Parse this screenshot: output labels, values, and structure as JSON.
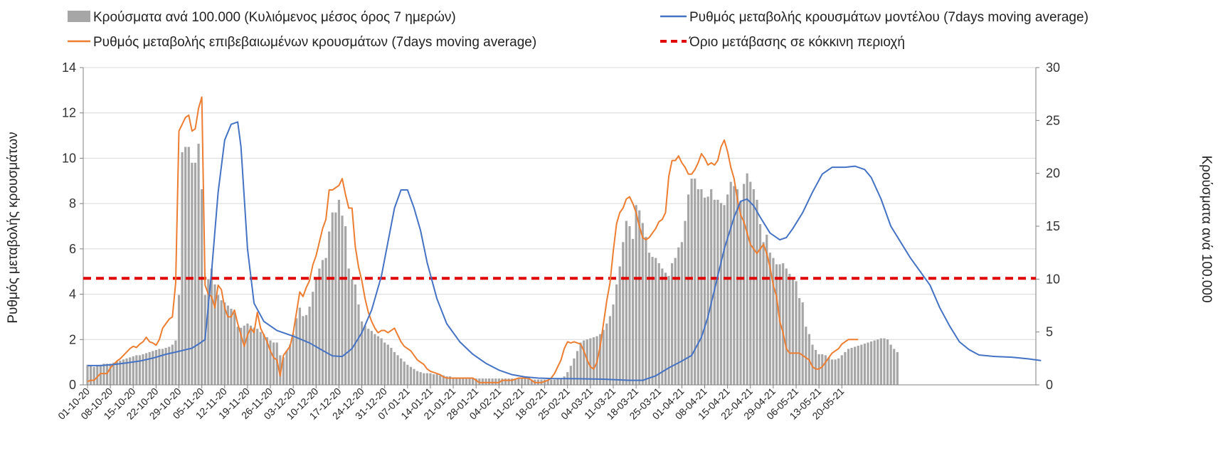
{
  "chart_data": {
    "type": "bar",
    "legend": {
      "bars_label": "Κρούσματα ανά 100.000 (Κυλιόμενος μέσος όρος 7 ημερών)",
      "model_label": "Ρυθμός μεταβολής κρουσμάτων μοντέλου (7days moving average)",
      "confirmed_label": "Ρυθμός μεταβολής επιβεβαιωμένων κρουσμάτων (7days moving average)",
      "threshold_label": "Όριο μετάβασης σε κόκκινη περιοχή"
    },
    "ylabel_left": "Ρυθμός μεταβολής κρουσμάτων",
    "ylabel_right": "Κρούσματα ανά 100.000",
    "ylim_left": [
      0,
      14
    ],
    "ylim_right": [
      0,
      30
    ],
    "yticks_left": [
      "0",
      "2",
      "4",
      "6",
      "8",
      "10",
      "12",
      "14"
    ],
    "yticks_right": [
      "0",
      "5",
      "10",
      "15",
      "20",
      "25",
      "30"
    ],
    "grid": true,
    "legend_position": "top",
    "x_labels": [
      "01-10-20",
      "08-10-20",
      "15-10-20",
      "22-10-20",
      "29-10-20",
      "05-11-20",
      "12-11-20",
      "19-11-20",
      "26-11-20",
      "03-12-20",
      "10-12-20",
      "17-12-20",
      "24-12-20",
      "31-12-20",
      "07-01-21",
      "14-01-21",
      "21-01-21",
      "28-01-21",
      "04-02-21",
      "11-02-21",
      "18-02-21",
      "25-02-21",
      "04-03-21",
      "11-03-21",
      "18-03-21",
      "25-03-21",
      "01-04-21",
      "08-04-21",
      "15-04-21",
      "22-04-21",
      "29-04-21",
      "06-05-21",
      "13-05-21",
      "20-05-21"
    ],
    "x_label_spacing_days": 7,
    "threshold_value": 4.7,
    "series": [
      {
        "name": "Κρούσματα ανά 100.000 (Κυλιόμενος μέσος όρος 7 ημερών)",
        "type": "bar",
        "axis": "right",
        "color": "#a6a6a6",
        "values": [
          1.9,
          1.8,
          1.7,
          1.8,
          1.9,
          2.0,
          2.0,
          2.0,
          2.1,
          2.2,
          2.3,
          2.4,
          2.5,
          2.6,
          2.7,
          2.8,
          2.8,
          2.9,
          3.0,
          3.1,
          3.2,
          3.3,
          3.4,
          3.4,
          3.5,
          3.6,
          3.8,
          4.2,
          8.5,
          22.0,
          22.5,
          22.5,
          21.0,
          21.0,
          22.8,
          18.5,
          8.5,
          10.0,
          11.0,
          9.5,
          8.5,
          8.0,
          7.8,
          7.5,
          7.2,
          6.8,
          5.5,
          5.4,
          5.6,
          5.8,
          5.6,
          5.4,
          5.3,
          5.0,
          4.8,
          4.5,
          4.2,
          4.0,
          4.0,
          2.8,
          2.6,
          3.2,
          3.8,
          4.8,
          6.3,
          7.3,
          6.5,
          6.6,
          7.4,
          8.8,
          10.0,
          11.0,
          11.8,
          12.0,
          14.5,
          16.3,
          16.3,
          17.5,
          16.0,
          15.0,
          11.0,
          10.0,
          9.5,
          7.6,
          6.0,
          5.6,
          5.3,
          5.1,
          4.8,
          4.6,
          4.4,
          4.0,
          3.8,
          3.5,
          3.1,
          2.8,
          2.5,
          2.2,
          1.9,
          1.7,
          1.5,
          1.3,
          1.2,
          1.1,
          1.1,
          1.1,
          1.0,
          1.0,
          0.9,
          0.9,
          0.8,
          0.8,
          0.7,
          0.6,
          0.6,
          0.6,
          0.6,
          0.6,
          0.6,
          0.6,
          0.6,
          0.6,
          0.6,
          0.6,
          0.6,
          0.6,
          0.6,
          0.6,
          0.6,
          0.6,
          0.6,
          0.6,
          0.6,
          0.6,
          0.6,
          0.6,
          0.5,
          0.5,
          0.5,
          0.5,
          0.5,
          0.5,
          0.5,
          0.5,
          0.6,
          0.6,
          0.8,
          1.2,
          1.8,
          2.5,
          3.2,
          4.0,
          4.2,
          4.3,
          4.4,
          4.5,
          4.6,
          4.8,
          5.2,
          5.8,
          6.5,
          7.6,
          9.5,
          11.2,
          13.5,
          15.5,
          15.0,
          13.8,
          17.0,
          16.5,
          15.3,
          14.0,
          12.5,
          12.1,
          12.0,
          11.5,
          11.0,
          10.6,
          10.3,
          11.5,
          12.0,
          13.0,
          13.5,
          15.5,
          18.0,
          19.5,
          19.5,
          18.5,
          18.5,
          17.7,
          17.8,
          18.5,
          17.5,
          17.5,
          17.2,
          17.0,
          18.0,
          19.2,
          18.8,
          18.5,
          17.4,
          19.0,
          20.0,
          19.2,
          18.5,
          17.5,
          15.2,
          13.5,
          14.2,
          12.5,
          12.0,
          11.4,
          11.4,
          11.5,
          11.0,
          10.5,
          10.2,
          9.8,
          8.2,
          7.8,
          5.5,
          4.8,
          3.8,
          3.3,
          2.9,
          2.9,
          2.8,
          2.6,
          2.4,
          2.4,
          2.5,
          2.8,
          3.1,
          3.4,
          3.5,
          3.6,
          3.7,
          3.8,
          3.9,
          4.0,
          4.1,
          4.2,
          4.3,
          4.4,
          4.4,
          4.3,
          3.8,
          3.4,
          3.1
        ]
      },
      {
        "name": "Ρυθμός μεταβολής κρουσμάτων μοντέλου (7days moving average)",
        "type": "line",
        "axis": "left",
        "color": "#4472c4",
        "points": [
          [
            0,
            0.85
          ],
          [
            4,
            0.85
          ],
          [
            8,
            0.9
          ],
          [
            12,
            0.97
          ],
          [
            16,
            1.05
          ],
          [
            20,
            1.18
          ],
          [
            24,
            1.35
          ],
          [
            28,
            1.48
          ],
          [
            32,
            1.62
          ],
          [
            34,
            1.8
          ],
          [
            36,
            2.0
          ],
          [
            38,
            5.0
          ],
          [
            40,
            8.5
          ],
          [
            42,
            10.8
          ],
          [
            44,
            11.5
          ],
          [
            46,
            11.6
          ],
          [
            47,
            10.5
          ],
          [
            49,
            6.0
          ],
          [
            51,
            3.6
          ],
          [
            54,
            2.8
          ],
          [
            58,
            2.4
          ],
          [
            63,
            2.15
          ],
          [
            68,
            1.85
          ],
          [
            72,
            1.52
          ],
          [
            75,
            1.28
          ],
          [
            78,
            1.25
          ],
          [
            81,
            1.6
          ],
          [
            84,
            2.3
          ],
          [
            87,
            3.3
          ],
          [
            90,
            4.8
          ],
          [
            92,
            6.3
          ],
          [
            94,
            7.8
          ],
          [
            96,
            8.6
          ],
          [
            98,
            8.6
          ],
          [
            100,
            7.8
          ],
          [
            102,
            6.8
          ],
          [
            104,
            5.4
          ],
          [
            107,
            3.8
          ],
          [
            110,
            2.7
          ],
          [
            114,
            1.9
          ],
          [
            118,
            1.35
          ],
          [
            122,
            0.95
          ],
          [
            126,
            0.65
          ],
          [
            130,
            0.45
          ],
          [
            134,
            0.35
          ],
          [
            138,
            0.3
          ],
          [
            142,
            0.28
          ],
          [
            150,
            0.27
          ],
          [
            158,
            0.25
          ],
          [
            166,
            0.2
          ],
          [
            170,
            0.2
          ],
          [
            174,
            0.4
          ],
          [
            178,
            0.75
          ],
          [
            182,
            1.05
          ],
          [
            185,
            1.3
          ],
          [
            188,
            2.1
          ],
          [
            190,
            3.0
          ],
          [
            192,
            4.2
          ],
          [
            195,
            6.0
          ],
          [
            198,
            7.4
          ],
          [
            200,
            8.1
          ],
          [
            202,
            8.2
          ],
          [
            204,
            7.9
          ],
          [
            206,
            7.4
          ],
          [
            209,
            6.7
          ],
          [
            212,
            6.4
          ],
          [
            214,
            6.5
          ],
          [
            216,
            6.9
          ],
          [
            219,
            7.6
          ],
          [
            222,
            8.5
          ],
          [
            225,
            9.3
          ],
          [
            228,
            9.6
          ],
          [
            232,
            9.6
          ],
          [
            235,
            9.65
          ],
          [
            238,
            9.5
          ],
          [
            240,
            9.15
          ],
          [
            243,
            8.2
          ],
          [
            246,
            7.0
          ],
          [
            249,
            6.3
          ],
          [
            252,
            5.6
          ],
          [
            255,
            5.0
          ],
          [
            258,
            4.4
          ],
          [
            261,
            3.4
          ],
          [
            264,
            2.6
          ],
          [
            267,
            1.9
          ],
          [
            270,
            1.55
          ],
          [
            273,
            1.32
          ],
          [
            278,
            1.25
          ],
          [
            283,
            1.22
          ],
          [
            288,
            1.15
          ],
          [
            292,
            1.07
          ]
        ]
      },
      {
        "name": "Ρυθμός μεταβολής επιβεβαιωμένων κρουσμάτων (7days moving average)",
        "type": "line",
        "axis": "left",
        "color": "#ed7d31",
        "values": [
          0.15,
          0.2,
          0.2,
          0.35,
          0.5,
          0.5,
          0.5,
          0.75,
          0.9,
          1.05,
          1.15,
          1.3,
          1.45,
          1.6,
          1.7,
          1.65,
          1.8,
          1.9,
          2.1,
          1.9,
          1.85,
          1.75,
          2.0,
          2.5,
          2.7,
          2.9,
          3.0,
          4.5,
          11.2,
          11.5,
          11.8,
          11.9,
          11.2,
          11.3,
          12.2,
          12.7,
          4.4,
          4.0,
          3.9,
          3.4,
          4.4,
          4.2,
          3.4,
          3.0,
          3.0,
          3.3,
          2.7,
          2.2,
          1.7,
          2.2,
          2.5,
          2.3,
          3.2,
          2.5,
          2.2,
          1.9,
          1.5,
          1.2,
          1.1,
          0.4,
          1.3,
          1.5,
          1.7,
          2.3,
          3.2,
          4.1,
          3.9,
          4.3,
          4.6,
          5.3,
          5.7,
          6.3,
          6.9,
          7.3,
          8.6,
          8.6,
          8.7,
          8.8,
          9.1,
          8.4,
          7.8,
          7.8,
          6.1,
          5.2,
          4.6,
          3.8,
          3.2,
          2.8,
          2.5,
          2.3,
          2.4,
          2.4,
          2.3,
          2.4,
          2.5,
          2.2,
          1.9,
          1.7,
          1.6,
          1.5,
          1.3,
          1.1,
          1.0,
          0.9,
          0.7,
          0.6,
          0.55,
          0.5,
          0.45,
          0.35,
          0.3,
          0.3,
          0.3,
          0.3,
          0.3,
          0.3,
          0.3,
          0.3,
          0.3,
          0.2,
          0.1,
          0.1,
          0.1,
          0.1,
          0.1,
          0.1,
          0.1,
          0.2,
          0.2,
          0.2,
          0.2,
          0.25,
          0.3,
          0.3,
          0.3,
          0.3,
          0.2,
          0.1,
          0.1,
          0.1,
          0.15,
          0.2,
          0.3,
          0.5,
          0.8,
          1.1,
          1.6,
          1.9,
          1.85,
          1.9,
          1.85,
          1.8,
          1.5,
          1.1,
          0.8,
          0.7,
          1.0,
          1.7,
          2.7,
          3.7,
          4.5,
          5.9,
          7.1,
          7.6,
          7.8,
          8.2,
          8.3,
          8.0,
          7.6,
          7.0,
          6.5,
          6.4,
          6.5,
          6.7,
          6.9,
          7.2,
          7.3,
          7.6,
          9.2,
          9.9,
          9.9,
          10.1,
          9.8,
          9.6,
          9.3,
          9.3,
          9.5,
          9.8,
          10.2,
          10.0,
          9.7,
          9.8,
          9.7,
          9.9,
          10.5,
          10.8,
          10.3,
          9.6,
          9.1,
          8.2,
          7.5,
          7.2,
          6.7,
          6.2,
          6.0,
          5.8,
          6.0,
          6.2,
          5.8,
          5.2,
          4.4,
          3.9,
          2.8,
          2.3,
          1.6,
          1.4,
          1.4,
          1.4,
          1.4,
          1.3,
          1.2,
          1.1,
          0.8,
          0.7,
          0.7,
          0.8,
          1.0,
          1.2,
          1.4,
          1.5,
          1.6,
          1.8,
          1.9,
          2.0,
          2.0,
          2.0,
          2.0
        ]
      }
    ]
  }
}
